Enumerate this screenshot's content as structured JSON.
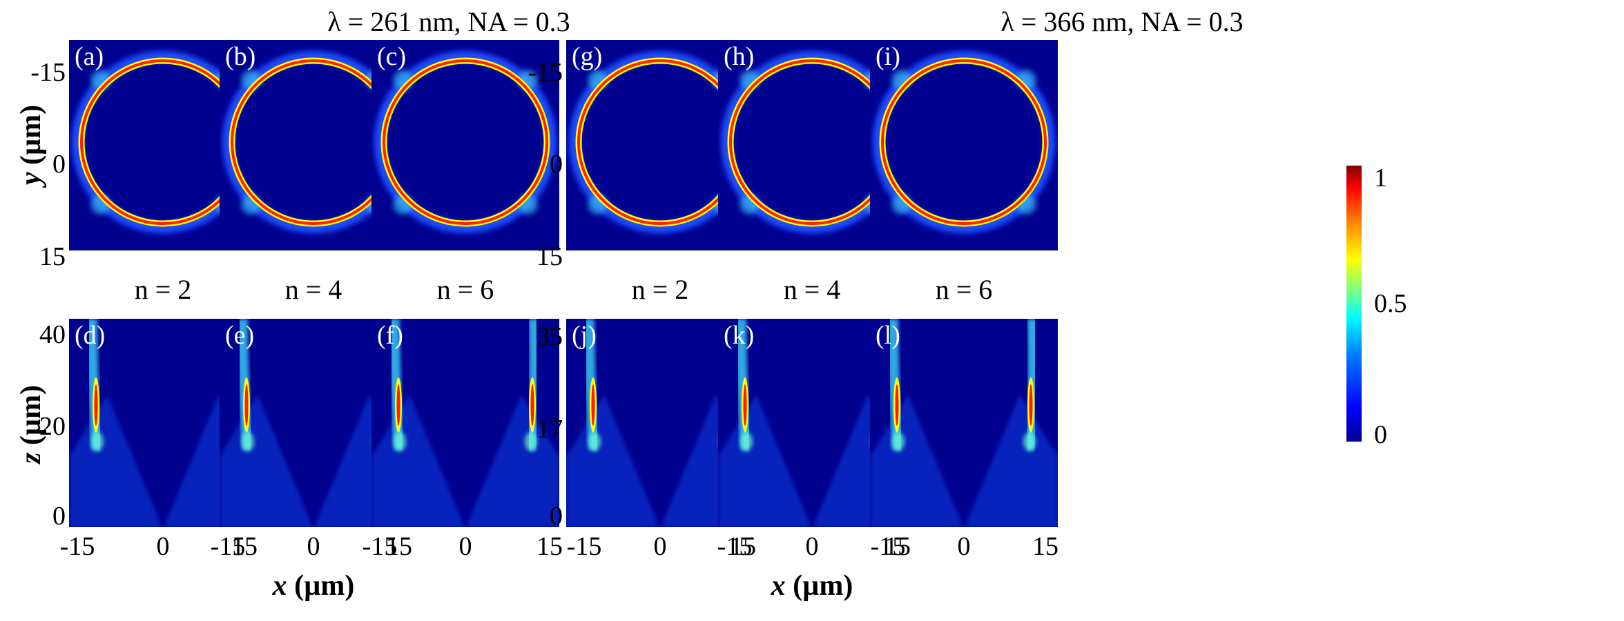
{
  "titles": {
    "left": "λ = 261 nm, NA = 0.3",
    "right": "λ = 366 nm, NA = 0.3"
  },
  "n_labels": [
    "n = 2",
    "n = 4",
    "n = 6",
    "n = 2",
    "n = 4",
    "n = 6"
  ],
  "panels": {
    "top": [
      "(a)",
      "(b)",
      "(c)",
      "(g)",
      "(h)",
      "(i)"
    ],
    "bottom": [
      "(d)",
      "(e)",
      "(f)",
      "(j)",
      "(k)",
      "(l)"
    ]
  },
  "axes": {
    "y_label_prefix": "y",
    "z_label_prefix": "z",
    "x_label_prefix": "x",
    "unit": " (µm)",
    "y_ticks": [
      "-15",
      "0",
      "15"
    ],
    "z_ticks_left": [
      "40",
      "20",
      "0"
    ],
    "z_ticks_right": [
      "35",
      "17",
      "0"
    ],
    "x_ticks": [
      "-15",
      "0",
      "15"
    ]
  },
  "colorbar": {
    "ticks": [
      "1",
      "0.5",
      "0"
    ],
    "colormap": "jet"
  },
  "colors": {
    "background": "#00008f",
    "ring": "#ff0000"
  }
}
